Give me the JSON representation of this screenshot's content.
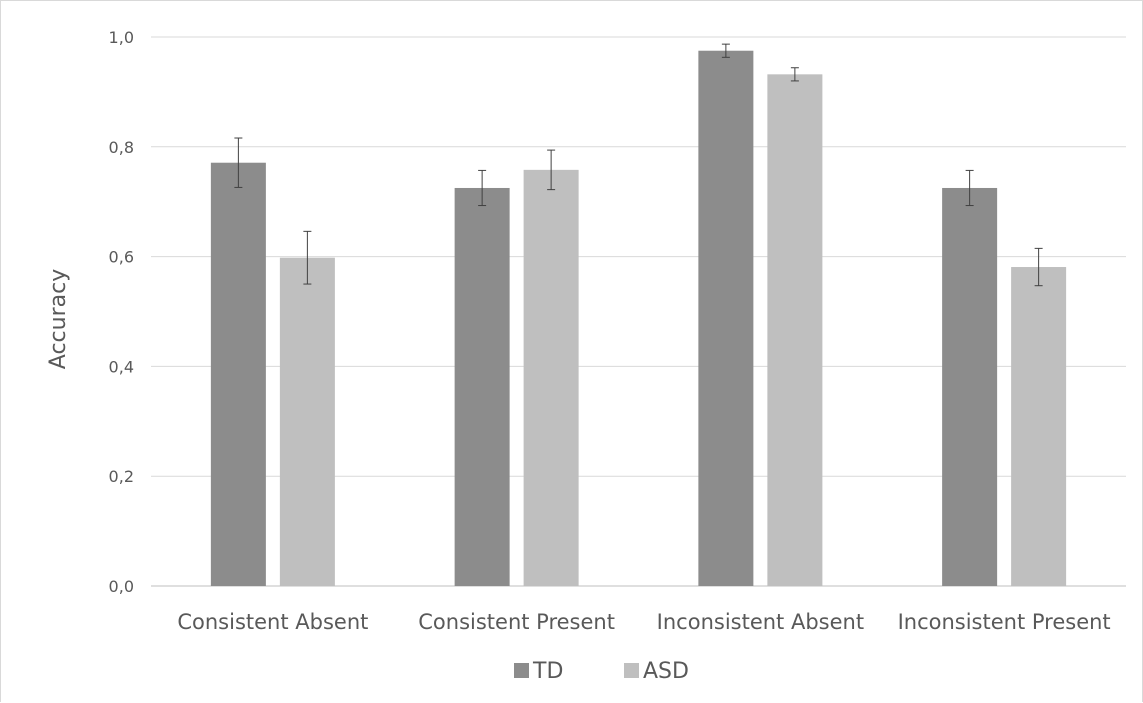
{
  "chart_data": {
    "type": "bar",
    "title": "",
    "xlabel": "",
    "ylabel": "Accuracy",
    "ylim": [
      0,
      1.0
    ],
    "yticks": [
      "0,0",
      "0,2",
      "0,4",
      "0,6",
      "0,8",
      "1,0"
    ],
    "ytick_values": [
      0,
      0.2,
      0.4,
      0.6,
      0.8,
      1.0
    ],
    "grid": true,
    "legend_position": "bottom",
    "categories": [
      "Consistent Absent",
      "Consistent Present",
      "Inconsistent Absent",
      "Inconsistent Present"
    ],
    "series": [
      {
        "name": "TD",
        "color": "#8c8c8c",
        "values": [
          0.771,
          0.725,
          0.975,
          0.725
        ],
        "error": [
          0.045,
          0.032,
          0.012,
          0.032
        ]
      },
      {
        "name": "ASD",
        "color": "#bfbfbf",
        "values": [
          0.598,
          0.758,
          0.932,
          0.581
        ],
        "error": [
          0.048,
          0.036,
          0.012,
          0.034
        ]
      }
    ]
  }
}
